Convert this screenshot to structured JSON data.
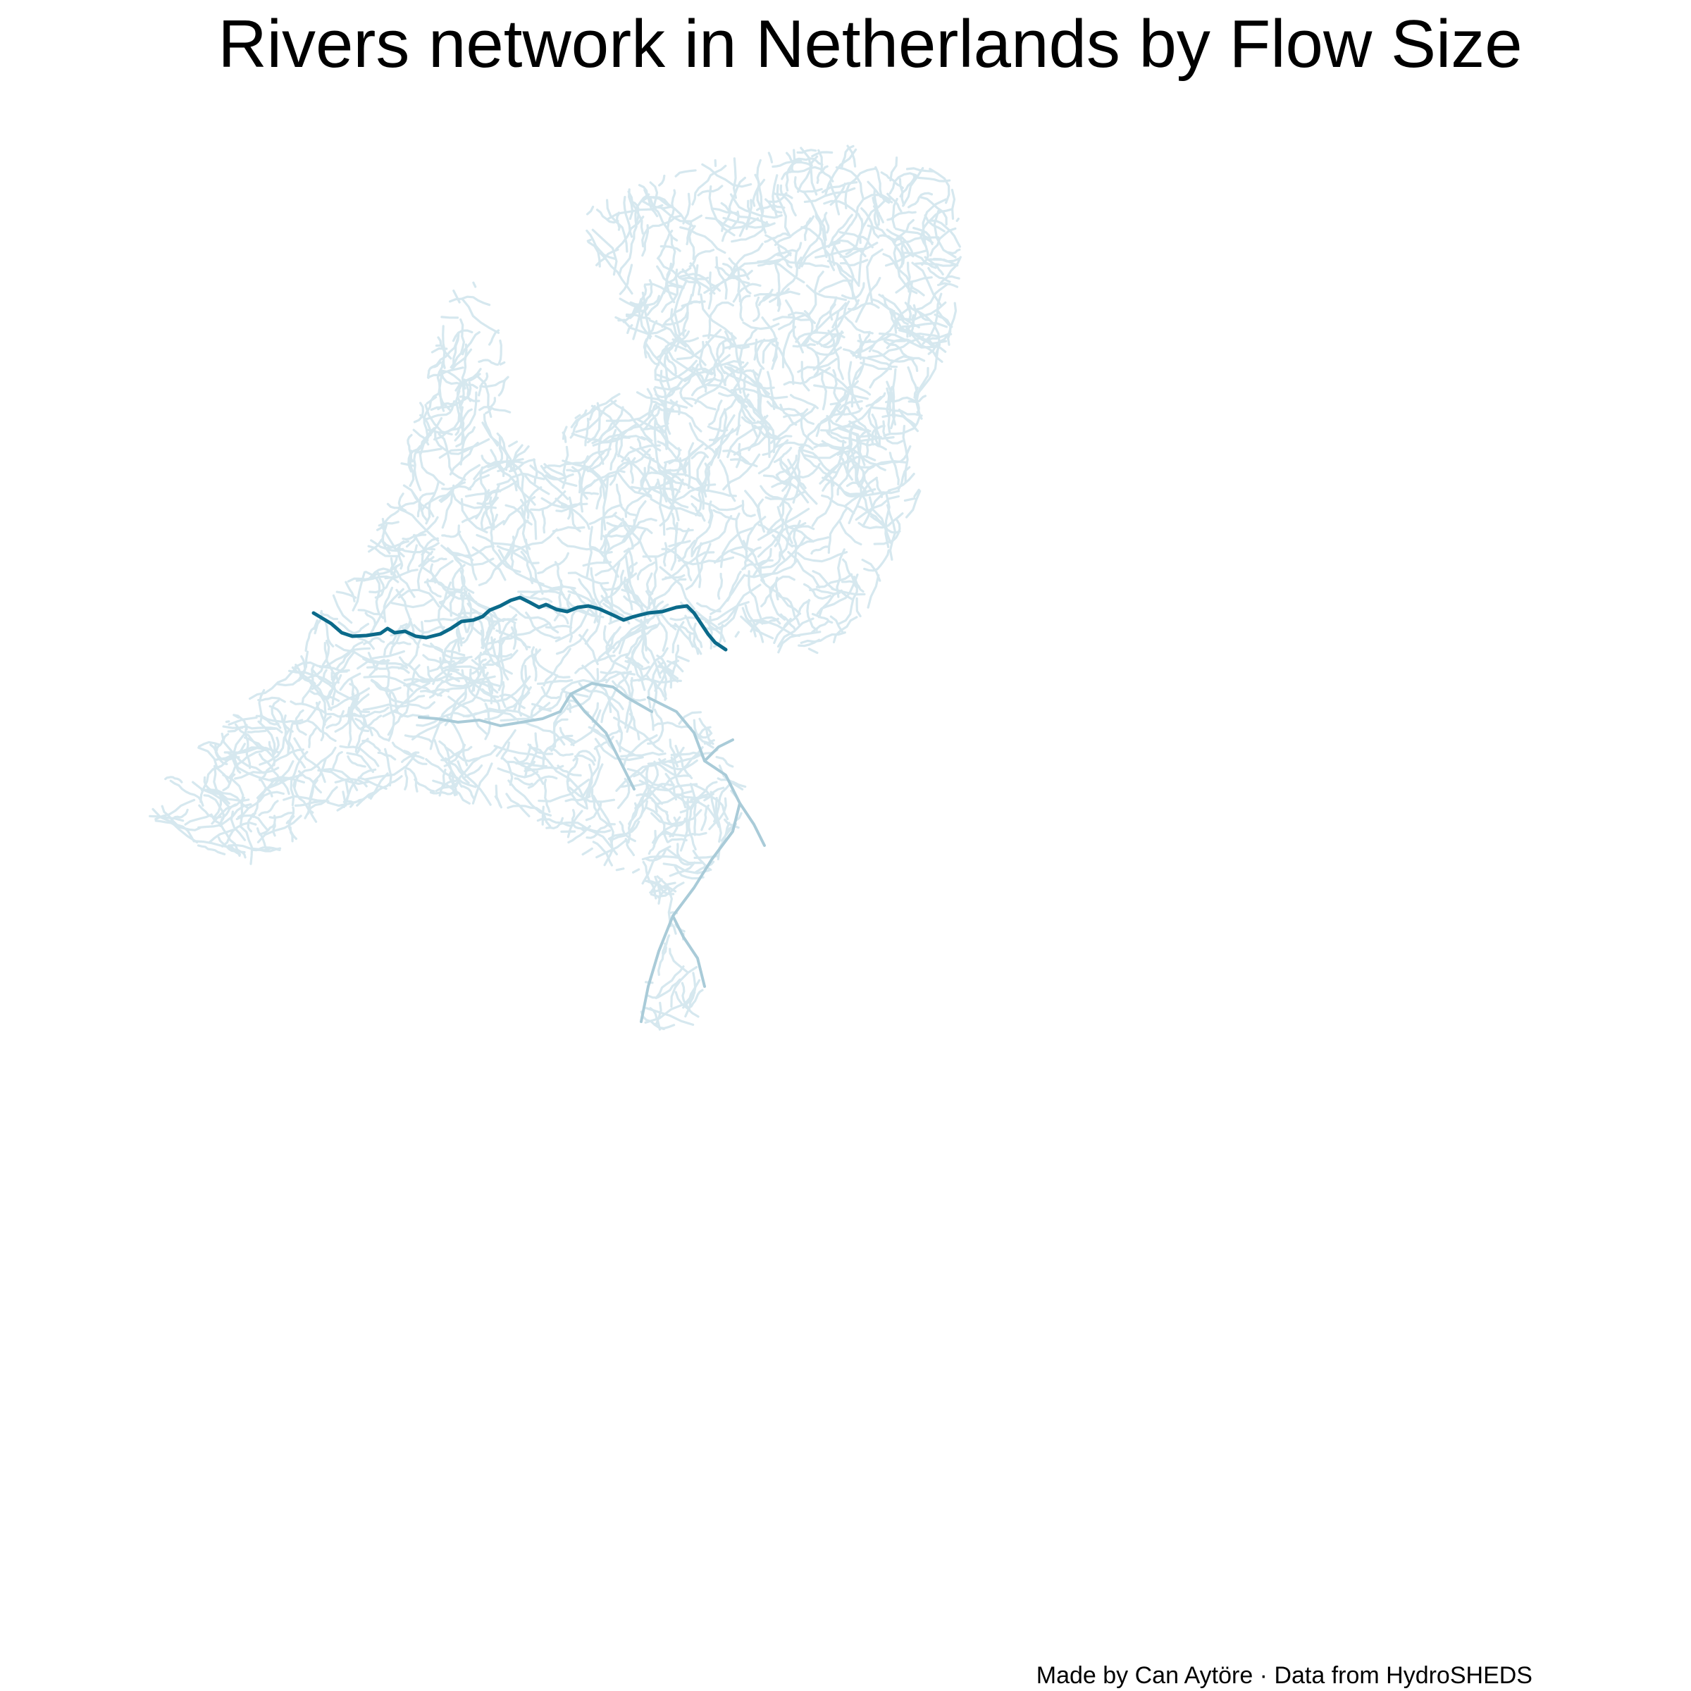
{
  "title": "Rivers network in Netherlands by Flow Size",
  "caption": "Made by Can Aytöre · Data from HydroSHEDS",
  "colors": {
    "background": "#ffffff",
    "river_large": "#0b6a8a",
    "river_medium": "#a9cbd8",
    "river_small": "#d6e8ef"
  },
  "map": {
    "country": "Netherlands",
    "encoding": "line color and width by river flow size"
  }
}
